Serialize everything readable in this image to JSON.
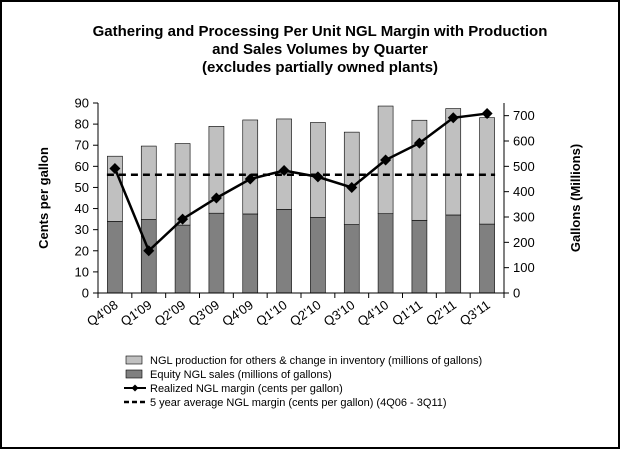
{
  "chart_data": {
    "type": "bar",
    "title_lines": [
      "Gathering and Processing Per Unit NGL Margin with Production",
      "and Sales Volumes by Quarter",
      "(excludes partially owned plants)"
    ],
    "categories": [
      "Q4'08",
      "Q1'09",
      "Q2'09",
      "Q3'09",
      "Q4'09",
      "Q1'10",
      "Q2'10",
      "Q3'10",
      "Q4'10",
      "Q1'11",
      "Q2'11",
      "Q3'11"
    ],
    "ylabel": "Cents per gallon",
    "y2label": "Gallons (Millions)",
    "ylim": [
      0,
      90
    ],
    "y_ticks": [
      0,
      10,
      20,
      30,
      40,
      50,
      60,
      70,
      80,
      90
    ],
    "y2lim": [
      0,
      750
    ],
    "y2_ticks": [
      0,
      100,
      200,
      300,
      400,
      500,
      600,
      700
    ],
    "series": [
      {
        "name": "Equity NGL sales (millions of gallons)",
        "kind": "stacked-bar-bottom",
        "axis": "right",
        "color": "#808080",
        "values": [
          283,
          290,
          268,
          315,
          312,
          330,
          298,
          270,
          313,
          287,
          308,
          272
        ]
      },
      {
        "name": "NGL production for others & change in inventory (millions of gallons)",
        "kind": "stacked-bar-top",
        "axis": "right",
        "color": "#c0c0c0",
        "values": [
          257,
          290,
          322,
          343,
          371,
          357,
          375,
          365,
          425,
          395,
          420,
          420
        ]
      },
      {
        "name": "Realized NGL margin (cents per gallon)",
        "kind": "line-markers",
        "axis": "left",
        "color": "#000000",
        "values": [
          59,
          20,
          35,
          45,
          54,
          58,
          55,
          50,
          63,
          71,
          83,
          85
        ]
      },
      {
        "name": "5 year average NGL margin (cents per gallon) (4Q06 - 3Q11)",
        "kind": "dashed-line",
        "axis": "left",
        "color": "#000000",
        "value": 56
      }
    ],
    "legend_position": "bottom",
    "legend_order": [
      1,
      0,
      2,
      3
    ]
  }
}
